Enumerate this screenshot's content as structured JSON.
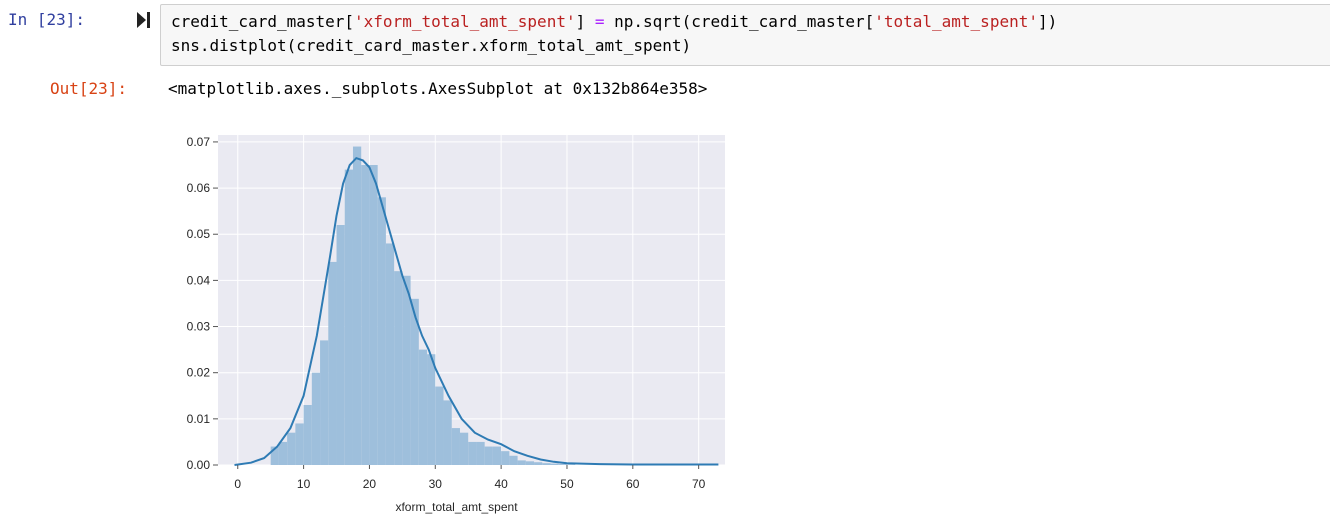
{
  "cell": {
    "in_prompt": "In [23]:",
    "out_prompt": "Out[23]:",
    "code": {
      "l1_a": "credit_card_master[",
      "l1_str1": "'xform_total_amt_spent'",
      "l1_b": "] ",
      "l1_op": "=",
      "l1_c": " np.sqrt(credit_card_master[",
      "l1_str2": "'total_amt_spent'",
      "l1_d": "])",
      "l2": "sns.distplot(credit_card_master.xform_total_amt_spent)"
    },
    "output_text": "<matplotlib.axes._subplots.AxesSubplot at 0x132b864e358>"
  },
  "colors": {
    "bar": "#9ebfdc",
    "kde": "#2e7bb4",
    "axes_bg": "#eaeaf2",
    "grid": "#ffffff"
  },
  "chart_data": {
    "type": "bar",
    "xlabel": "xform_total_amt_spent",
    "ylabel": "",
    "xlim": [
      -3,
      74
    ],
    "ylim": [
      0,
      0.0715
    ],
    "x_ticks": [
      0,
      10,
      20,
      30,
      40,
      50,
      60,
      70
    ],
    "y_ticks": [
      0.0,
      0.01,
      0.02,
      0.03,
      0.04,
      0.05,
      0.06,
      0.07
    ],
    "y_tick_labels": [
      "0.00",
      "0.01",
      "0.02",
      "0.03",
      "0.04",
      "0.05",
      "0.06",
      "0.07"
    ],
    "bin_width": 1.25,
    "bins_left": [
      5,
      6.25,
      7.5,
      8.75,
      10,
      11.25,
      12.5,
      13.75,
      15,
      16.25,
      17.5,
      18.75,
      20,
      21.25,
      22.5,
      23.75,
      25,
      26.25,
      27.5,
      28.75,
      30,
      31.25,
      32.5,
      33.75,
      35,
      36.25,
      37.5,
      38.75,
      40,
      41.25,
      42.5,
      43.75,
      45,
      46.25,
      47.5,
      48.75,
      50
    ],
    "bins_height": [
      0.004,
      0.005,
      0.007,
      0.009,
      0.013,
      0.02,
      0.027,
      0.044,
      0.052,
      0.064,
      0.069,
      0.065,
      0.065,
      0.058,
      0.048,
      0.042,
      0.041,
      0.036,
      0.025,
      0.024,
      0.017,
      0.014,
      0.008,
      0.007,
      0.005,
      0.005,
      0.004,
      0.004,
      0.003,
      0.002,
      0.001,
      0.0008,
      0.0006,
      0.0004,
      0.0003,
      0.0002,
      0.0001
    ],
    "kde_x": [
      -0.5,
      2,
      4,
      6,
      8,
      10,
      12,
      14,
      15,
      16,
      17,
      18,
      19,
      20,
      21,
      22,
      23,
      24,
      25,
      26,
      27,
      28,
      29,
      30,
      32,
      34,
      36,
      38,
      40,
      42,
      44,
      46,
      48,
      50,
      55,
      60,
      65,
      70,
      73
    ],
    "kde_y": [
      0.0,
      0.0005,
      0.0015,
      0.004,
      0.008,
      0.015,
      0.028,
      0.045,
      0.054,
      0.061,
      0.065,
      0.0665,
      0.066,
      0.0645,
      0.061,
      0.056,
      0.051,
      0.046,
      0.041,
      0.037,
      0.032,
      0.028,
      0.025,
      0.021,
      0.015,
      0.01,
      0.007,
      0.0055,
      0.0045,
      0.003,
      0.002,
      0.0012,
      0.0007,
      0.0004,
      0.0002,
      0.0001,
      0.0001,
      0.0001,
      0.0001
    ]
  }
}
